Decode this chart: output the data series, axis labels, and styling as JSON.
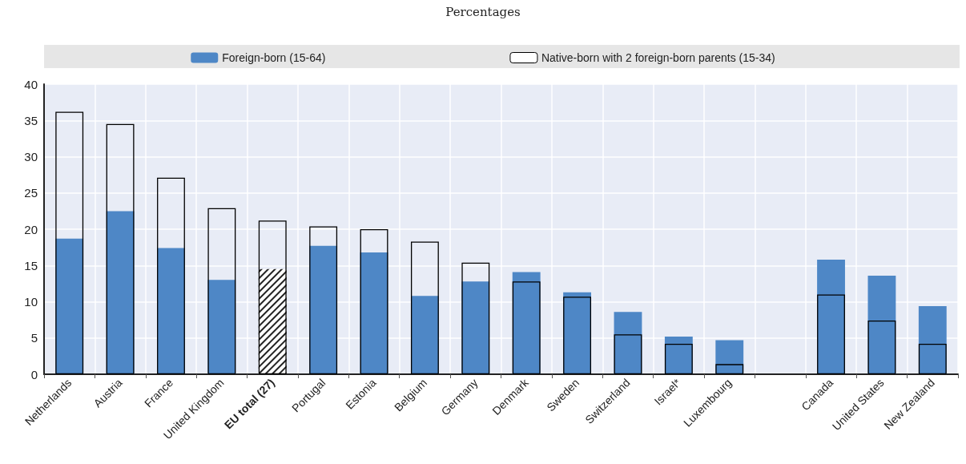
{
  "chart_data": {
    "type": "bar",
    "subtitle": "Percentages",
    "categories": [
      "Netherlands",
      "Austria",
      "France",
      "United Kingdom",
      "EU total (27)",
      "Portugal",
      "Estonia",
      "Belgium",
      "Germany",
      "Denmark",
      "Sweden",
      "Switzerland",
      "Israel*",
      "Luxembourg",
      null,
      "Canada",
      "United States",
      "New Zealand"
    ],
    "series": [
      {
        "name": "Foreign-born (15-64)",
        "color": "#4e87c6",
        "colors": [
          "#4e87c6",
          "#4e87c6",
          "#4e87c6",
          "#4e87c6",
          "#ffffff",
          "#4e87c6",
          "#4e87c6",
          "#4e87c6",
          "#4e87c6",
          "#4e87c6",
          "#4e87c6",
          "#4e87c6",
          "#4e87c6",
          "#4e87c6",
          "#4e87c6",
          "#4e87c6",
          "#4e87c6",
          "#4e87c6"
        ],
        "values": [
          18.7,
          22.5,
          17.4,
          13.0,
          14.5,
          17.7,
          16.8,
          10.8,
          12.8,
          14.1,
          11.3,
          8.6,
          5.2,
          4.7,
          null,
          15.8,
          13.6,
          9.4
        ]
      },
      {
        "name": "Native-born with 2 foreign-born parents (15-34)",
        "color": "#000000",
        "values": [
          36.2,
          34.5,
          27.1,
          22.9,
          21.2,
          20.4,
          20.0,
          18.3,
          15.4,
          12.8,
          10.7,
          5.5,
          4.2,
          1.4,
          null,
          11.0,
          7.4,
          4.2
        ]
      }
    ],
    "ylim": [
      0,
      40
    ],
    "yticks": [
      0,
      5,
      10,
      15,
      20,
      25,
      30,
      35,
      40
    ],
    "grid": true,
    "legend": "top"
  }
}
